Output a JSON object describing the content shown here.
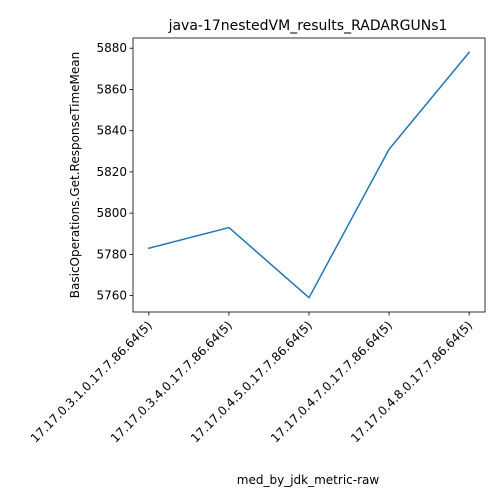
{
  "chart_data": {
    "type": "line",
    "title": "java-17nestedVM_results_RADARGUNs1",
    "xlabel": "med_by_jdk_metric-raw",
    "ylabel": "BasicOperations.Get.ResponseTimeMean",
    "categories": [
      "17.17.0.3.1.0.17.7.86.64(5)",
      "17.17.0.3.4.0.17.7.86.64(5)",
      "17.17.0.4.5.0.17.7.86.64(5)",
      "17.17.0.4.7.0.17.7.86.64(5)",
      "17.17.0.4.8.0.17.7.86.64(5)"
    ],
    "series": [
      {
        "values": [
          5783,
          5793,
          5759,
          5831,
          5878
        ],
        "color": "#1f77b4"
      }
    ],
    "ylim": [
      5752.05,
      5884.95
    ],
    "yticks": [
      5760,
      5780,
      5800,
      5820,
      5840,
      5860,
      5880
    ],
    "grid": false,
    "legend": "none"
  }
}
